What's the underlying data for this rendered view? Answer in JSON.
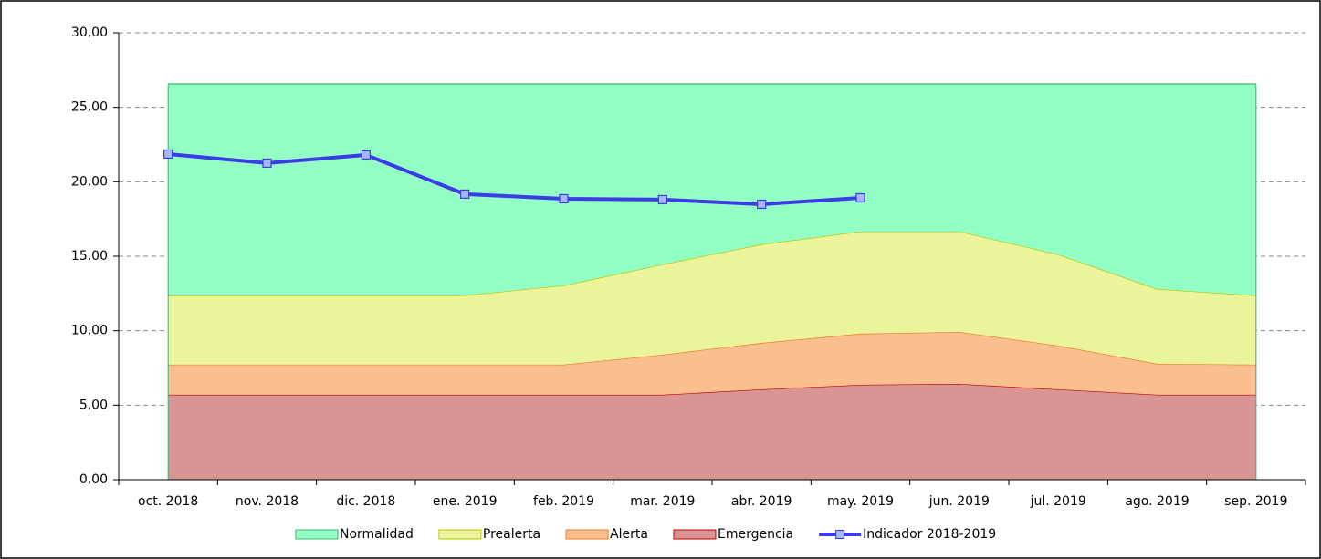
{
  "chart_data": {
    "type": "stacked-area-line",
    "categories": [
      "oct. 2018",
      "nov. 2018",
      "dic. 2018",
      "ene. 2019",
      "feb. 2019",
      "mar. 2019",
      "abr. 2019",
      "may. 2019",
      "jun. 2019",
      "jul. 2019",
      "ago. 2019",
      "sep. 2019"
    ],
    "series": [
      {
        "name": "Emergencia",
        "color": "#d99594",
        "stroke": "#c00000",
        "kind": "area",
        "values": [
          5.7,
          5.7,
          5.7,
          5.7,
          5.7,
          5.7,
          6.06,
          6.37,
          6.43,
          6.06,
          5.7,
          5.7
        ]
      },
      {
        "name": "Alerta",
        "color": "#f9bf8f",
        "stroke": "#f07828",
        "kind": "area",
        "values": [
          2.02,
          2.02,
          2.02,
          2.02,
          2.02,
          2.69,
          3.12,
          3.43,
          3.49,
          2.94,
          2.08,
          2.02
        ]
      },
      {
        "name": "Prealerta",
        "color": "#ebf39b",
        "stroke": "#b4c800",
        "kind": "area",
        "values": [
          4.65,
          4.65,
          4.65,
          4.65,
          5.32,
          6.06,
          6.62,
          6.86,
          6.74,
          6.12,
          5.02,
          4.65
        ]
      },
      {
        "name": "Normalidad",
        "color": "#94ffc4",
        "stroke": "#3cb371",
        "kind": "area",
        "values": [
          14.2,
          14.2,
          14.2,
          14.2,
          13.53,
          12.12,
          10.77,
          9.91,
          9.91,
          11.45,
          13.77,
          14.2
        ]
      },
      {
        "name": "Indicador 2018-2019",
        "color": "#3c3ce6",
        "marker": "#a8b8ff",
        "kind": "line",
        "values": [
          21.86,
          21.25,
          21.8,
          19.17,
          18.86,
          18.8,
          18.49,
          18.92,
          null,
          null,
          null,
          null
        ]
      }
    ],
    "legend_order": [
      3,
      2,
      1,
      0,
      4
    ],
    "ylim": [
      0,
      30
    ],
    "yticks": [
      {
        "value": 0,
        "label": "0,00"
      },
      {
        "value": 5,
        "label": "5,00"
      },
      {
        "value": 10,
        "label": "10,00"
      },
      {
        "value": 15,
        "label": "15,00"
      },
      {
        "value": 20,
        "label": "20,00"
      },
      {
        "value": 25,
        "label": "25,00"
      },
      {
        "value": 30,
        "label": "30,00"
      }
    ],
    "grid": true
  }
}
